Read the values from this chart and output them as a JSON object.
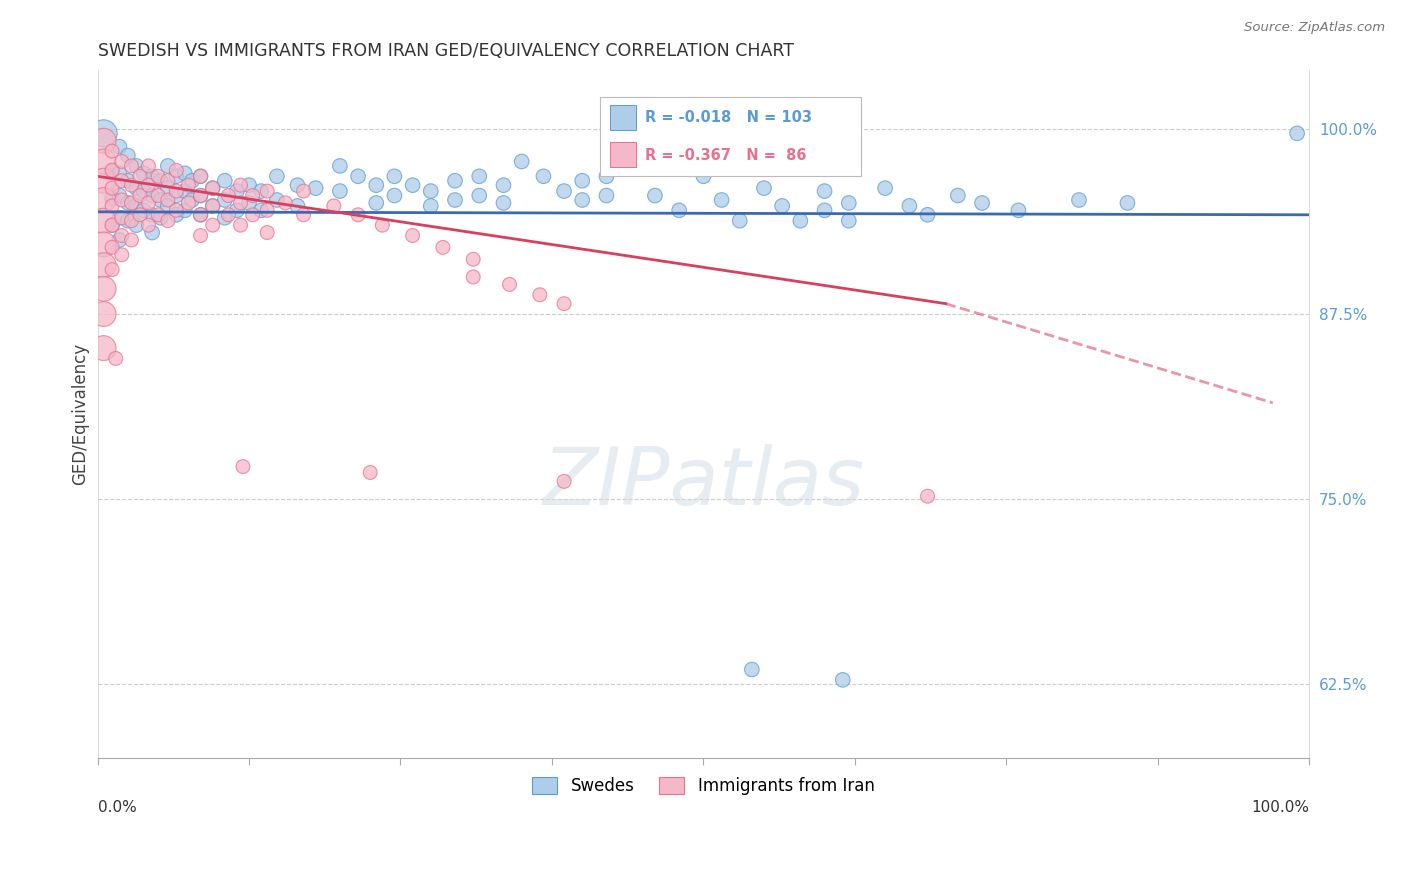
{
  "title": "SWEDISH VS IMMIGRANTS FROM IRAN GED/EQUIVALENCY CORRELATION CHART",
  "source": "Source: ZipAtlas.com",
  "ylabel": "GED/Equivalency",
  "yticks": [
    0.625,
    0.75,
    0.875,
    1.0
  ],
  "ytick_labels": [
    "62.5%",
    "75.0%",
    "87.5%",
    "100.0%"
  ],
  "legend_blue_label": "Swedes",
  "legend_pink_label": "Immigrants from Iran",
  "blue_fill": "#aecde8",
  "blue_edge": "#5b9bd5",
  "pink_fill": "#f4b8c8",
  "pink_edge": "#e87090",
  "blue_line_color": "#3a6ab0",
  "pink_line_color": "#d94060",
  "watermark": "ZIPatlas",
  "xmin": 0.0,
  "xmax": 1.0,
  "ymin": 0.575,
  "ymax": 1.04,
  "blue_trend": [
    0.0,
    0.944,
    1.0,
    0.942
  ],
  "pink_trend_solid": [
    0.0,
    0.968,
    0.7,
    0.882
  ],
  "pink_trend_dash": [
    0.7,
    0.882,
    0.97,
    0.815
  ],
  "dot_size": 120,
  "blue_dots": [
    [
      0.005,
      0.997
    ],
    [
      0.012,
      0.972
    ],
    [
      0.012,
      0.953
    ],
    [
      0.012,
      0.935
    ],
    [
      0.018,
      0.988
    ],
    [
      0.018,
      0.97
    ],
    [
      0.018,
      0.955
    ],
    [
      0.018,
      0.94
    ],
    [
      0.018,
      0.925
    ],
    [
      0.025,
      0.982
    ],
    [
      0.025,
      0.965
    ],
    [
      0.025,
      0.95
    ],
    [
      0.025,
      0.938
    ],
    [
      0.032,
      0.975
    ],
    [
      0.032,
      0.96
    ],
    [
      0.032,
      0.948
    ],
    [
      0.032,
      0.935
    ],
    [
      0.038,
      0.97
    ],
    [
      0.038,
      0.958
    ],
    [
      0.038,
      0.945
    ],
    [
      0.045,
      0.968
    ],
    [
      0.045,
      0.955
    ],
    [
      0.045,
      0.942
    ],
    [
      0.045,
      0.93
    ],
    [
      0.052,
      0.965
    ],
    [
      0.052,
      0.952
    ],
    [
      0.052,
      0.94
    ],
    [
      0.058,
      0.975
    ],
    [
      0.058,
      0.96
    ],
    [
      0.058,
      0.948
    ],
    [
      0.065,
      0.968
    ],
    [
      0.065,
      0.955
    ],
    [
      0.065,
      0.942
    ],
    [
      0.072,
      0.97
    ],
    [
      0.072,
      0.958
    ],
    [
      0.072,
      0.945
    ],
    [
      0.078,
      0.965
    ],
    [
      0.078,
      0.952
    ],
    [
      0.085,
      0.968
    ],
    [
      0.085,
      0.955
    ],
    [
      0.085,
      0.942
    ],
    [
      0.095,
      0.96
    ],
    [
      0.095,
      0.948
    ],
    [
      0.105,
      0.965
    ],
    [
      0.105,
      0.952
    ],
    [
      0.105,
      0.94
    ],
    [
      0.115,
      0.958
    ],
    [
      0.115,
      0.945
    ],
    [
      0.125,
      0.962
    ],
    [
      0.125,
      0.95
    ],
    [
      0.135,
      0.958
    ],
    [
      0.135,
      0.945
    ],
    [
      0.148,
      0.968
    ],
    [
      0.148,
      0.952
    ],
    [
      0.165,
      0.962
    ],
    [
      0.165,
      0.948
    ],
    [
      0.18,
      0.96
    ],
    [
      0.2,
      0.975
    ],
    [
      0.2,
      0.958
    ],
    [
      0.215,
      0.968
    ],
    [
      0.23,
      0.962
    ],
    [
      0.23,
      0.95
    ],
    [
      0.245,
      0.968
    ],
    [
      0.245,
      0.955
    ],
    [
      0.26,
      0.962
    ],
    [
      0.275,
      0.958
    ],
    [
      0.275,
      0.948
    ],
    [
      0.295,
      0.965
    ],
    [
      0.295,
      0.952
    ],
    [
      0.315,
      0.968
    ],
    [
      0.315,
      0.955
    ],
    [
      0.335,
      0.962
    ],
    [
      0.335,
      0.95
    ],
    [
      0.35,
      0.978
    ],
    [
      0.368,
      0.968
    ],
    [
      0.385,
      0.958
    ],
    [
      0.4,
      0.965
    ],
    [
      0.4,
      0.952
    ],
    [
      0.42,
      0.968
    ],
    [
      0.42,
      0.955
    ],
    [
      0.445,
      0.975
    ],
    [
      0.46,
      0.955
    ],
    [
      0.48,
      0.945
    ],
    [
      0.5,
      0.968
    ],
    [
      0.515,
      0.952
    ],
    [
      0.53,
      0.938
    ],
    [
      0.55,
      0.96
    ],
    [
      0.565,
      0.948
    ],
    [
      0.58,
      0.938
    ],
    [
      0.6,
      0.958
    ],
    [
      0.6,
      0.945
    ],
    [
      0.62,
      0.95
    ],
    [
      0.62,
      0.938
    ],
    [
      0.65,
      0.96
    ],
    [
      0.67,
      0.948
    ],
    [
      0.685,
      0.942
    ],
    [
      0.71,
      0.955
    ],
    [
      0.73,
      0.95
    ],
    [
      0.76,
      0.945
    ],
    [
      0.81,
      0.952
    ],
    [
      0.85,
      0.95
    ],
    [
      0.54,
      0.635
    ],
    [
      0.615,
      0.628
    ],
    [
      0.99,
      0.997
    ]
  ],
  "pink_dots": [
    [
      0.005,
      0.992
    ],
    [
      0.005,
      0.978
    ],
    [
      0.005,
      0.965
    ],
    [
      0.005,
      0.952
    ],
    [
      0.005,
      0.938
    ],
    [
      0.005,
      0.922
    ],
    [
      0.005,
      0.908
    ],
    [
      0.005,
      0.892
    ],
    [
      0.005,
      0.875
    ],
    [
      0.005,
      0.852
    ],
    [
      0.012,
      0.985
    ],
    [
      0.012,
      0.972
    ],
    [
      0.012,
      0.96
    ],
    [
      0.012,
      0.948
    ],
    [
      0.012,
      0.935
    ],
    [
      0.012,
      0.92
    ],
    [
      0.012,
      0.905
    ],
    [
      0.02,
      0.978
    ],
    [
      0.02,
      0.965
    ],
    [
      0.02,
      0.952
    ],
    [
      0.02,
      0.94
    ],
    [
      0.02,
      0.928
    ],
    [
      0.02,
      0.915
    ],
    [
      0.028,
      0.975
    ],
    [
      0.028,
      0.962
    ],
    [
      0.028,
      0.95
    ],
    [
      0.028,
      0.938
    ],
    [
      0.028,
      0.925
    ],
    [
      0.035,
      0.968
    ],
    [
      0.035,
      0.955
    ],
    [
      0.035,
      0.942
    ],
    [
      0.042,
      0.975
    ],
    [
      0.042,
      0.962
    ],
    [
      0.042,
      0.95
    ],
    [
      0.042,
      0.935
    ],
    [
      0.05,
      0.968
    ],
    [
      0.05,
      0.955
    ],
    [
      0.05,
      0.942
    ],
    [
      0.058,
      0.965
    ],
    [
      0.058,
      0.952
    ],
    [
      0.058,
      0.938
    ],
    [
      0.065,
      0.972
    ],
    [
      0.065,
      0.958
    ],
    [
      0.065,
      0.945
    ],
    [
      0.075,
      0.962
    ],
    [
      0.075,
      0.95
    ],
    [
      0.085,
      0.968
    ],
    [
      0.085,
      0.955
    ],
    [
      0.085,
      0.942
    ],
    [
      0.085,
      0.928
    ],
    [
      0.095,
      0.96
    ],
    [
      0.095,
      0.948
    ],
    [
      0.095,
      0.935
    ],
    [
      0.108,
      0.955
    ],
    [
      0.108,
      0.942
    ],
    [
      0.118,
      0.962
    ],
    [
      0.118,
      0.95
    ],
    [
      0.118,
      0.935
    ],
    [
      0.128,
      0.955
    ],
    [
      0.128,
      0.942
    ],
    [
      0.14,
      0.958
    ],
    [
      0.14,
      0.945
    ],
    [
      0.14,
      0.93
    ],
    [
      0.155,
      0.95
    ],
    [
      0.17,
      0.958
    ],
    [
      0.17,
      0.942
    ],
    [
      0.195,
      0.948
    ],
    [
      0.215,
      0.942
    ],
    [
      0.235,
      0.935
    ],
    [
      0.26,
      0.928
    ],
    [
      0.285,
      0.92
    ],
    [
      0.31,
      0.912
    ],
    [
      0.31,
      0.9
    ],
    [
      0.34,
      0.895
    ],
    [
      0.365,
      0.888
    ],
    [
      0.385,
      0.882
    ],
    [
      0.015,
      0.845
    ],
    [
      0.12,
      0.772
    ],
    [
      0.225,
      0.768
    ],
    [
      0.385,
      0.762
    ],
    [
      0.685,
      0.752
    ]
  ],
  "blue_dot_size": 110,
  "pink_dot_size": 100,
  "blue_large_size": 380,
  "pink_large_size": 320
}
